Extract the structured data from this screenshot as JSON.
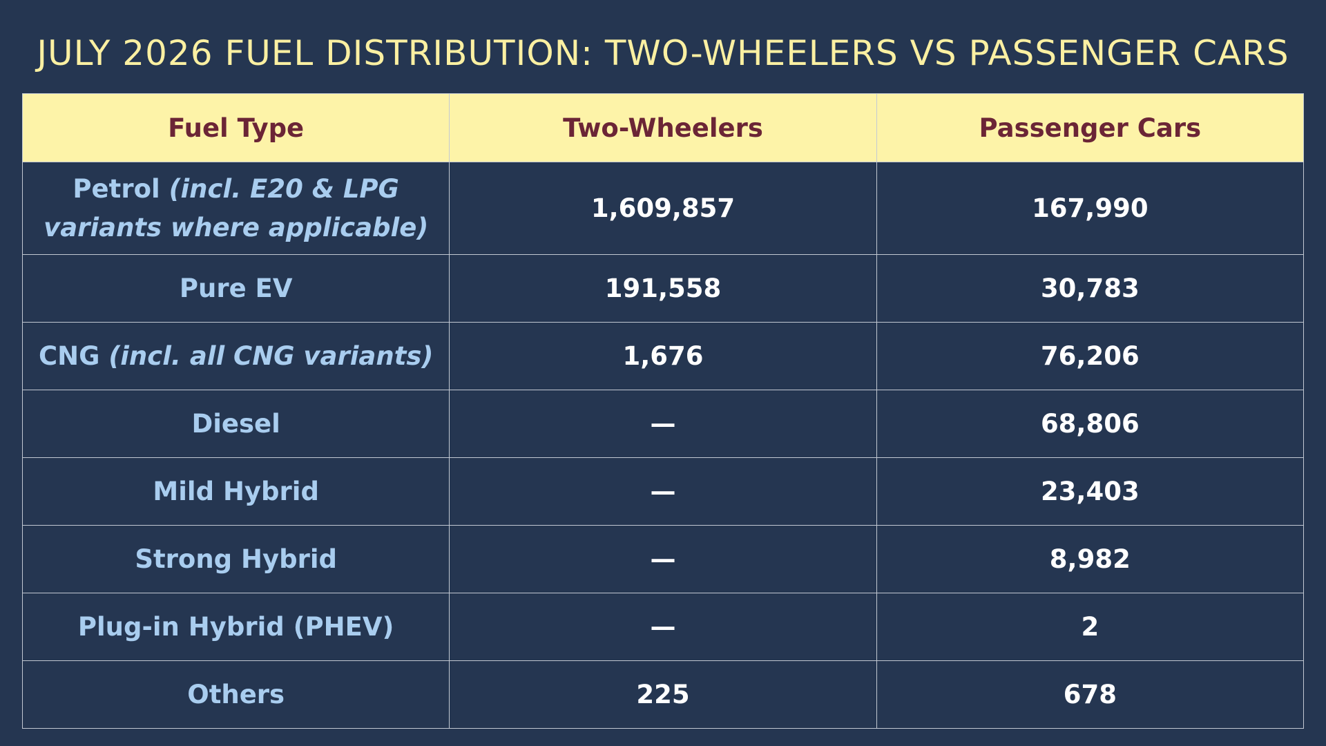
{
  "title": "JULY 2026 FUEL DISTRIBUTION: TWO-WHEELERS VS PASSENGER CARS",
  "table": {
    "header": [
      "Fuel Type",
      "Two-Wheelers",
      "Passenger Cars"
    ],
    "rows": [
      {
        "fuel": "Petrol",
        "note": "(incl. E20 & LPG variants where applicable)",
        "two_wheelers": "1,609,857",
        "passenger_cars": "167,990"
      },
      {
        "fuel": "Pure EV",
        "two_wheelers": "191,558",
        "passenger_cars": "30,783"
      },
      {
        "fuel": "CNG",
        "note": "(incl. all CNG variants)",
        "two_wheelers": "1,676",
        "passenger_cars": "76,206"
      },
      {
        "fuel": "Diesel",
        "two_wheelers": "—",
        "passenger_cars": "68,806"
      },
      {
        "fuel": "Mild Hybrid",
        "two_wheelers": "—",
        "passenger_cars": "23,403"
      },
      {
        "fuel": "Strong Hybrid",
        "two_wheelers": "—",
        "passenger_cars": "8,982"
      },
      {
        "fuel": "Plug-in Hybrid (PHEV)",
        "two_wheelers": "—",
        "passenger_cars": "2"
      },
      {
        "fuel": "Others",
        "two_wheelers": "225",
        "passenger_cars": "678"
      }
    ]
  }
}
